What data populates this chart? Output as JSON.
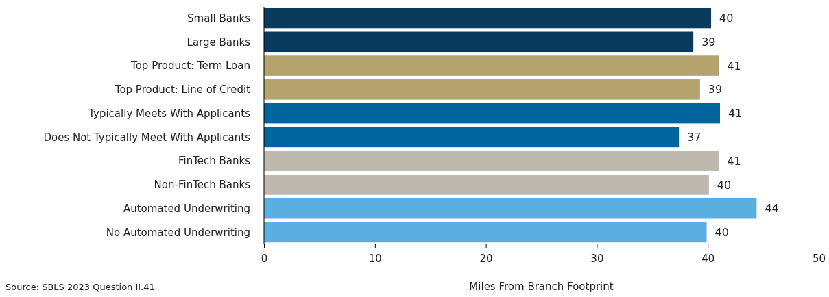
{
  "chart_data": {
    "type": "bar",
    "orientation": "horizontal",
    "xlabel": "Miles From Branch Footprint",
    "categories": [
      "Small Banks",
      "Large Banks",
      "Top Product: Term Loan",
      "Top Product: Line of Credit",
      "Typically Meets With Applicants",
      "Does Not Typically Meet With Applicants",
      "FinTech Banks",
      "Non-FinTech Banks",
      "Automated Underwriting",
      "No Automated Underwriting"
    ],
    "values": [
      40.3,
      38.7,
      41.0,
      39.3,
      41.1,
      37.4,
      41.0,
      40.1,
      44.4,
      39.9
    ],
    "value_labels": [
      "40",
      "39",
      "41",
      "39",
      "41",
      "37",
      "41",
      "40",
      "44",
      "40"
    ],
    "colors": [
      "#0a3a5c",
      "#0a3a5c",
      "#b3a36c",
      "#b3a36c",
      "#00659c",
      "#00659c",
      "#bfb8ae",
      "#bfb8ae",
      "#5aaee0",
      "#5aaee0"
    ],
    "xlim": [
      0,
      50
    ],
    "xticks": [
      0,
      10,
      20,
      30,
      40,
      50
    ],
    "annotations": [
      "Source: SBLS 2023 Question II.41"
    ]
  }
}
